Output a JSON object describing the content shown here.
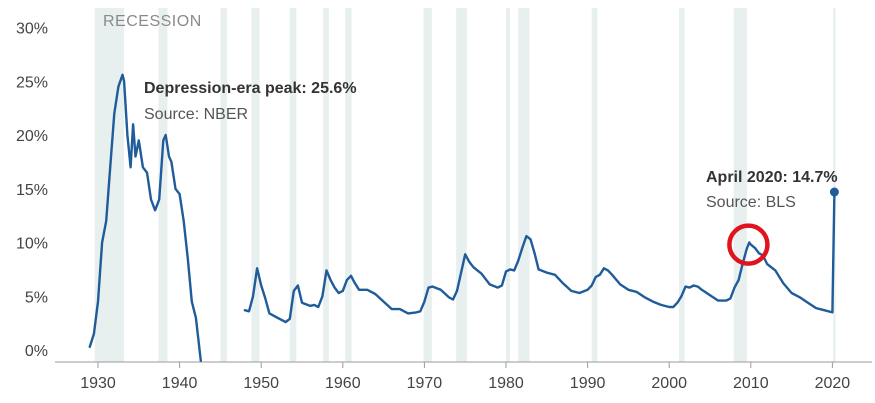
{
  "chart_data": {
    "type": "line",
    "legend": {
      "recession_label": "RECESSION"
    },
    "xlim": [
      1926,
      2025
    ],
    "ylim": [
      -1,
      30
    ],
    "x_ticks": [
      1930,
      1940,
      1950,
      1960,
      1970,
      1980,
      1990,
      2000,
      2010,
      2020
    ],
    "x_tick_labels": [
      "1930",
      "1940",
      "1950",
      "1960",
      "1970",
      "1980",
      "1990",
      "2000",
      "2010",
      "2020"
    ],
    "y_ticks": [
      0,
      5,
      10,
      15,
      20,
      25,
      30
    ],
    "y_tick_labels": [
      "0%",
      "5%",
      "10%",
      "15%",
      "20%",
      "25%",
      "30%"
    ],
    "grid": false,
    "colors": {
      "line": "#1f5c99",
      "recession": "#e8efef",
      "highlight": "#e0141e"
    },
    "recessions": [
      [
        1929.6,
        1933.2
      ],
      [
        1937.4,
        1938.5
      ],
      [
        1945.0,
        1945.8
      ],
      [
        1948.8,
        1949.8
      ],
      [
        1953.5,
        1954.3
      ],
      [
        1957.6,
        1958.3
      ],
      [
        1960.3,
        1961.1
      ],
      [
        1969.9,
        1970.9
      ],
      [
        1973.9,
        1975.2
      ],
      [
        1980.0,
        1980.5
      ],
      [
        1981.5,
        1982.9
      ],
      [
        1990.5,
        1991.2
      ],
      [
        2001.2,
        2001.9
      ],
      [
        2007.9,
        2009.5
      ],
      [
        2020.1,
        2020.4
      ]
    ],
    "series": [
      {
        "x": [
          1929.0,
          1929.5,
          1930.0,
          1930.5,
          1931.0,
          1931.5,
          1932.0,
          1932.5,
          1933.0,
          1933.2,
          1933.6,
          1934.0,
          1934.3,
          1934.6,
          1935.0,
          1935.5,
          1936.0,
          1936.5,
          1937.0,
          1937.5,
          1938.0,
          1938.3,
          1938.7,
          1939.0,
          1939.5,
          1940.0,
          1940.5,
          1941.0,
          1941.5,
          1942.0,
          1942.6
        ],
        "values": [
          0.3,
          1.5,
          4.5,
          10.0,
          12.0,
          17.0,
          22.0,
          24.5,
          25.6,
          25.0,
          20.0,
          17.0,
          21.0,
          18.0,
          19.5,
          17.0,
          16.5,
          14.0,
          13.0,
          14.0,
          19.5,
          20.0,
          18.0,
          17.5,
          15.0,
          14.5,
          12.0,
          8.5,
          4.5,
          3.0,
          -1.0
        ]
      },
      {
        "x": [
          1948.0,
          1948.5,
          1949.0,
          1949.5,
          1950.0,
          1950.5,
          1951.0,
          1951.5,
          1952.0,
          1952.5,
          1953.0,
          1953.5,
          1954.0,
          1954.5,
          1955.0,
          1956.0,
          1956.5,
          1957.0,
          1957.5,
          1958.0,
          1958.5,
          1959.0,
          1959.5,
          1960.0,
          1960.5,
          1961.0,
          1961.5,
          1962.0,
          1963.0,
          1964.0,
          1965.0,
          1966.0,
          1967.0,
          1968.0,
          1969.0,
          1969.5,
          1970.0,
          1970.5,
          1971.0,
          1972.0,
          1973.0,
          1973.5,
          1974.0,
          1974.5,
          1975.0,
          1975.5,
          1976.0,
          1977.0,
          1978.0,
          1979.0,
          1979.5,
          1980.0,
          1980.5,
          1981.0,
          1981.5,
          1982.0,
          1982.5,
          1983.0,
          1983.5,
          1984.0,
          1985.0,
          1986.0,
          1987.0,
          1988.0,
          1989.0,
          1990.0,
          1990.5,
          1991.0,
          1991.5,
          1992.0,
          1992.5,
          1993.0,
          1994.0,
          1995.0,
          1996.0,
          1997.0,
          1998.0,
          1999.0,
          2000.0,
          2000.5,
          2001.0,
          2001.5,
          2002.0,
          2002.5,
          2003.0,
          2003.5,
          2004.0,
          2005.0,
          2006.0,
          2007.0,
          2007.5,
          2008.0,
          2008.5,
          2009.0,
          2009.5,
          2009.8,
          2010.0,
          2010.5,
          2011.0,
          2011.5,
          2012.0,
          2013.0,
          2014.0,
          2015.0,
          2016.0,
          2017.0,
          2018.0,
          2019.0,
          2020.0,
          2020.25
        ],
        "values": [
          3.7,
          3.6,
          5.0,
          7.6,
          6.0,
          4.8,
          3.4,
          3.2,
          3.0,
          2.8,
          2.6,
          2.9,
          5.5,
          6.0,
          4.4,
          4.1,
          4.2,
          4.0,
          5.0,
          7.4,
          6.5,
          5.8,
          5.3,
          5.5,
          6.5,
          6.9,
          6.2,
          5.6,
          5.6,
          5.2,
          4.5,
          3.8,
          3.8,
          3.4,
          3.5,
          3.6,
          4.5,
          5.8,
          5.9,
          5.6,
          4.9,
          4.7,
          5.5,
          7.2,
          8.9,
          8.2,
          7.7,
          7.1,
          6.1,
          5.8,
          6.0,
          7.3,
          7.5,
          7.4,
          8.3,
          9.5,
          10.6,
          10.3,
          9.0,
          7.5,
          7.2,
          7.0,
          6.2,
          5.5,
          5.3,
          5.6,
          6.0,
          6.8,
          7.0,
          7.6,
          7.4,
          7.0,
          6.1,
          5.6,
          5.4,
          4.9,
          4.5,
          4.2,
          4.0,
          4.0,
          4.4,
          5.0,
          5.9,
          5.8,
          6.0,
          5.9,
          5.6,
          5.1,
          4.6,
          4.6,
          4.8,
          5.8,
          6.5,
          8.0,
          9.4,
          10.0,
          9.8,
          9.5,
          9.0,
          8.8,
          8.0,
          7.4,
          6.2,
          5.3,
          4.9,
          4.4,
          3.9,
          3.7,
          3.5,
          14.7
        ]
      }
    ],
    "annotations": [
      {
        "bold": "Depression-era peak: 25.6%",
        "source": "Source: NBER"
      },
      {
        "bold": "April 2020: 14.7%",
        "source": "Source: BLS"
      }
    ]
  }
}
